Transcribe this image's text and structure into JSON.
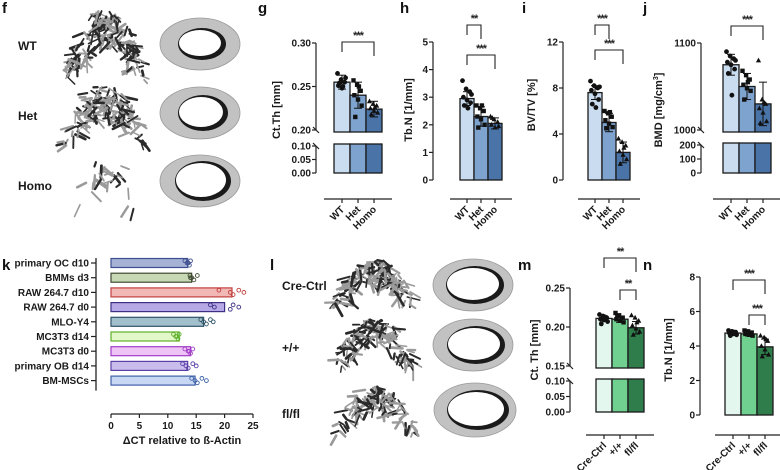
{
  "panels": {
    "f": {
      "letter": "f",
      "rows": [
        "WT",
        "Het",
        "Homo"
      ]
    },
    "l": {
      "letter": "l",
      "rows": [
        "Cre-Ctrl",
        "+/+",
        "fl/fl"
      ]
    }
  },
  "chart_data": [
    {
      "id": "g",
      "letter": "g",
      "type": "bar",
      "ylabel": "Ct.Th [mm]",
      "categories": [
        "WT",
        "Het",
        "Homo"
      ],
      "values": [
        0.255,
        0.24,
        0.224
      ],
      "errors": [
        0.008,
        0.015,
        0.009
      ],
      "points": [
        [
          0.265,
          0.258,
          0.255,
          0.251,
          0.248,
          0.26,
          0.254,
          0.25
        ],
        [
          0.257,
          0.252,
          0.245,
          0.24,
          0.235,
          0.228,
          0.215,
          0.25
        ],
        [
          0.233,
          0.23,
          0.228,
          0.225,
          0.222,
          0.22,
          0.218,
          0.226
        ]
      ],
      "ylim_upper": [
        0.2,
        0.3
      ],
      "yticks_upper": [
        "0.20",
        "0.25",
        "0.30"
      ],
      "ylim_lower": [
        0.0,
        0.1
      ],
      "yticks_lower": [
        "0.00",
        "0.05",
        "0.10"
      ],
      "colors": [
        "#c9dcf0",
        "#7ea3cf",
        "#4a73a8"
      ],
      "significance": [
        {
          "from": 0,
          "to": 2,
          "label": "***"
        }
      ]
    },
    {
      "id": "h",
      "letter": "h",
      "type": "bar",
      "ylabel": "Tb.N [1/mm]",
      "categories": [
        "WT",
        "Het",
        "Homo"
      ],
      "values": [
        2.95,
        2.3,
        2.05
      ],
      "errors": [
        0.25,
        0.35,
        0.2
      ],
      "points": [
        [
          3.6,
          3.3,
          3.2,
          3.0,
          2.9,
          2.8,
          2.7,
          2.6,
          3.1
        ],
        [
          2.7,
          2.6,
          2.5,
          2.3,
          2.2,
          2.0,
          1.9,
          2.7
        ],
        [
          2.3,
          2.2,
          2.1,
          2.0,
          1.9,
          1.95,
          2.25
        ]
      ],
      "ylim": [
        0,
        5
      ],
      "yticks": [
        "0",
        "1",
        "2",
        "3",
        "4",
        "5"
      ],
      "colors": [
        "#c9dcf0",
        "#7ea3cf",
        "#4a73a8"
      ],
      "significance": [
        {
          "from": 0,
          "to": 1,
          "label": "**"
        },
        {
          "from": 0,
          "to": 2,
          "label": "***"
        }
      ]
    },
    {
      "id": "i",
      "letter": "i",
      "type": "bar",
      "ylabel": "BV/TV [%]",
      "categories": [
        "WT",
        "Het",
        "Homo"
      ],
      "values": [
        7.6,
        5.0,
        2.4
      ],
      "errors": [
        0.6,
        0.8,
        0.9
      ],
      "points": [
        [
          8.6,
          8.2,
          8.0,
          7.8,
          7.5,
          7.0,
          6.6,
          6.3,
          8.1
        ],
        [
          6.0,
          5.8,
          5.5,
          5.2,
          4.9,
          4.6,
          4.5,
          5.9
        ],
        [
          3.6,
          3.3,
          3.0,
          2.5,
          2.2,
          1.8,
          1.4,
          2.8
        ]
      ],
      "ylim": [
        0,
        12
      ],
      "yticks": [
        "0",
        "4",
        "8",
        "12"
      ],
      "colors": [
        "#c9dcf0",
        "#7ea3cf",
        "#4a73a8"
      ],
      "significance": [
        {
          "from": 0,
          "to": 1,
          "label": "***"
        },
        {
          "from": 0,
          "to": 2,
          "label": "***"
        }
      ]
    },
    {
      "id": "j",
      "letter": "j",
      "type": "bar",
      "ylabel": "BMD [mg/cm",
      "ylabel_sup": "3",
      "ylabel_end": "]",
      "categories": [
        "WT",
        "Het",
        "Homo"
      ],
      "values": [
        1075,
        1050,
        1030
      ],
      "errors": [
        12,
        15,
        25
      ],
      "points": [
        [
          1090,
          1085,
          1082,
          1078,
          1075,
          1070,
          1065,
          1040,
          1080
        ],
        [
          1068,
          1063,
          1058,
          1052,
          1048,
          1045,
          1035,
          1055
        ],
        [
          1080,
          1035,
          1030,
          1025,
          1020,
          1010,
          1008,
          1032
        ]
      ],
      "ylim_upper": [
        1000,
        1100
      ],
      "yticks_upper": [
        "1000",
        "1100"
      ],
      "ylim_lower": [
        0,
        200
      ],
      "yticks_lower": [
        "0",
        "100",
        "200"
      ],
      "colors": [
        "#c9dcf0",
        "#7ea3cf",
        "#4a73a8"
      ],
      "significance": [
        {
          "from": 0,
          "to": 2,
          "label": "***"
        }
      ]
    },
    {
      "id": "k",
      "letter": "k",
      "type": "bar",
      "orientation": "horizontal",
      "xlabel": "ΔCT relative to ß-Actin",
      "categories": [
        "primary OC d10",
        "BMMs d3",
        "RAW 264.7 d10",
        "RAW 264.7 d0",
        "MLO-Y4",
        "MC3T3 d14",
        "MC3T3 d0",
        "primary OB d14",
        "BM-MSCs"
      ],
      "values": [
        13.5,
        14.2,
        21.3,
        20.0,
        16.3,
        12.0,
        14.0,
        13.5,
        14.8
      ],
      "points": [
        [
          13.0,
          13.4,
          13.8,
          14.0,
          13.6
        ],
        [
          13.9,
          14.2,
          14.6,
          15.2,
          14.0
        ],
        [
          19.0,
          21.0,
          21.5,
          22.5,
          23.4
        ],
        [
          17.5,
          18.2,
          21.0,
          21.5,
          22.5
        ],
        [
          15.8,
          16.3,
          16.8,
          17.5,
          18.0
        ],
        [
          11.0,
          11.4,
          11.8,
          12.0,
          11.6
        ],
        [
          13.0,
          13.6,
          14.0,
          14.4,
          13.8
        ],
        [
          12.6,
          13.2,
          13.6,
          14.4,
          15.0
        ],
        [
          14.2,
          14.8,
          15.2,
          16.0,
          16.8
        ]
      ],
      "xlim": [
        0,
        25
      ],
      "xticks": [
        "0",
        "5",
        "10",
        "15",
        "20",
        "25"
      ],
      "fills": [
        "#a6b1d6",
        "#c6d9b4",
        "#f2b8b6",
        "#b7a9e6",
        "#a2bfcc",
        "#e3f8c8",
        "#eec4f6",
        "#c9bdec",
        "#c8d7f4"
      ],
      "strokes": [
        "#3e4f8f",
        "#404a32",
        "#c0403e",
        "#3d2f86",
        "#2f5468",
        "#5fb02c",
        "#a23dc8",
        "#5a3fa8",
        "#3f62a8"
      ]
    },
    {
      "id": "m",
      "letter": "m",
      "type": "bar",
      "ylabel": "Ct. Th [mm]",
      "categories": [
        "Cre-Ctrl",
        "+/+",
        "fl/fl"
      ],
      "values": [
        0.211,
        0.21,
        0.199
      ],
      "errors": [
        0.003,
        0.004,
        0.008
      ],
      "points": [
        [
          0.216,
          0.214,
          0.212,
          0.21,
          0.209,
          0.207,
          0.204,
          0.213
        ],
        [
          0.218,
          0.215,
          0.212,
          0.21,
          0.208,
          0.206,
          0.214
        ],
        [
          0.215,
          0.212,
          0.208,
          0.202,
          0.198,
          0.194,
          0.19,
          0.206
        ]
      ],
      "ylim_upper": [
        0.15,
        0.25
      ],
      "yticks_upper": [
        "0.15",
        "0.20",
        "0.25"
      ],
      "ylim_lower": [
        0.0,
        0.1
      ],
      "yticks_lower": [
        "0.00",
        "0.05",
        "0.10"
      ],
      "colors": [
        "#e3f7ee",
        "#6fd08f",
        "#2f7d4a"
      ],
      "significance": [
        {
          "from": 0,
          "to": 2,
          "label": "**"
        },
        {
          "from": 1,
          "to": 2,
          "label": "**"
        }
      ]
    },
    {
      "id": "n",
      "letter": "n",
      "type": "bar",
      "ylabel": "Tb.N [1/mm]",
      "categories": [
        "Cre-Ctrl",
        "+/+",
        "fl/fl"
      ],
      "values": [
        4.75,
        4.7,
        3.95
      ],
      "errors": [
        0.12,
        0.12,
        0.45
      ],
      "points": [
        [
          4.9,
          4.85,
          4.8,
          4.75,
          4.7,
          4.65,
          4.6,
          4.8
        ],
        [
          4.9,
          4.85,
          4.78,
          4.7,
          4.65,
          4.6,
          4.75
        ],
        [
          4.6,
          4.5,
          4.3,
          4.0,
          3.8,
          3.5,
          3.4,
          4.4
        ]
      ],
      "ylim": [
        0,
        8
      ],
      "yticks": [
        "0",
        "2",
        "4",
        "6",
        "8"
      ],
      "colors": [
        "#e3f7ee",
        "#6fd08f",
        "#2f7d4a"
      ],
      "significance": [
        {
          "from": 0,
          "to": 2,
          "label": "***"
        },
        {
          "from": 1,
          "to": 2,
          "label": "***"
        }
      ]
    }
  ]
}
